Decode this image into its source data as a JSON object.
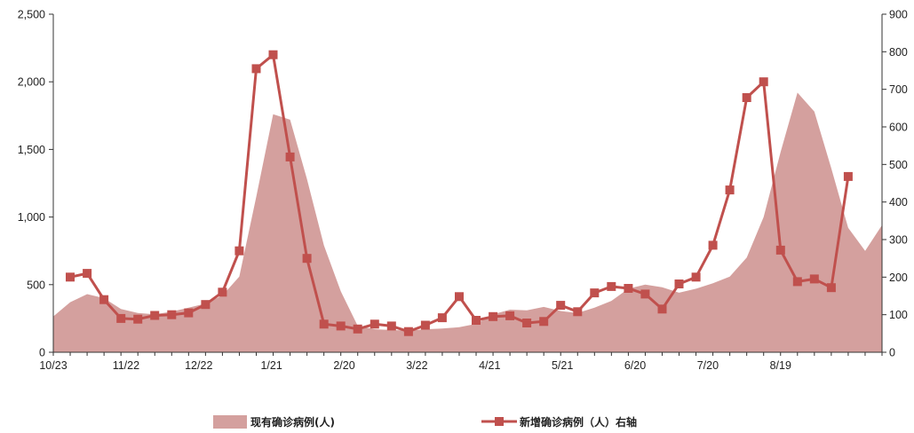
{
  "chart_data": {
    "type": "area+line",
    "title": "",
    "xlabel": "",
    "ylabel": "",
    "x_tick_labels": [
      "10/23",
      "11/22",
      "12/22",
      "1/21",
      "2/20",
      "3/22",
      "4/21",
      "5/21",
      "6/20",
      "7/20",
      "8/19"
    ],
    "left_axis": {
      "min": 0,
      "max": 2500,
      "ticks": [
        "0",
        "500",
        "1,000",
        "1,500",
        "2,000",
        "2,500"
      ]
    },
    "right_axis": {
      "min": 0,
      "max": 900,
      "ticks": [
        "0",
        "100",
        "200",
        "300",
        "400",
        "500",
        "600",
        "700",
        "800",
        "900"
      ]
    },
    "series": [
      {
        "name": "现有确诊病例(人)",
        "type": "area",
        "axis": "left",
        "color": "#d4a09e",
        "values": [
          265,
          370,
          430,
          400,
          320,
          290,
          280,
          300,
          330,
          360,
          420,
          560,
          1150,
          1760,
          1720,
          1280,
          790,
          450,
          195,
          170,
          165,
          160,
          170,
          175,
          185,
          210,
          280,
          315,
          310,
          335,
          305,
          290,
          330,
          380,
          470,
          500,
          480,
          440,
          470,
          510,
          560,
          700,
          1000,
          1480,
          1920,
          1780,
          1360,
          920,
          750,
          940
        ]
      },
      {
        "name": "新增确诊病例（人）右轴",
        "type": "line",
        "axis": "right",
        "color": "#c0504d",
        "marker": "square",
        "x_start_index": 1,
        "values": [
          200,
          210,
          140,
          90,
          88,
          98,
          100,
          105,
          127,
          160,
          270,
          755,
          792,
          520,
          250,
          75,
          70,
          62,
          75,
          70,
          55,
          72,
          92,
          148,
          85,
          95,
          97,
          78,
          82,
          125,
          108,
          158,
          175,
          170,
          155,
          115,
          182,
          200,
          285,
          432,
          678,
          720,
          272,
          188,
          195,
          172,
          468
        ]
      }
    ],
    "legend_position": "bottom",
    "grid": false
  }
}
